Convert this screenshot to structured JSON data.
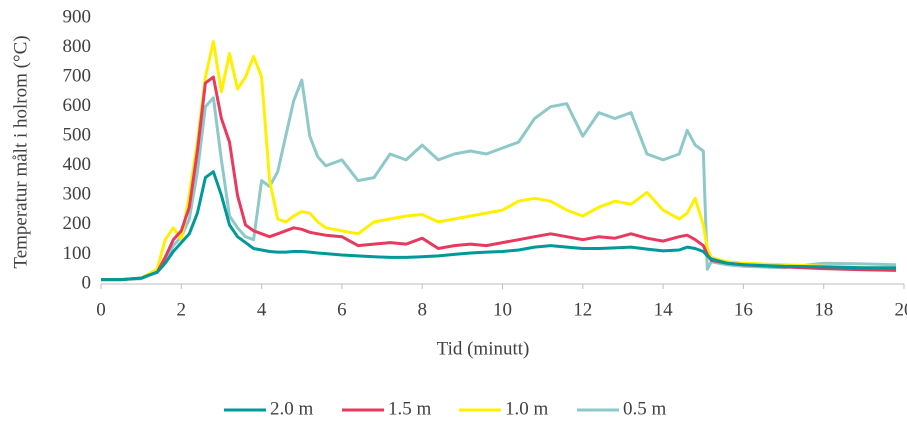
{
  "chart_data": {
    "type": "line",
    "x_label": "Tid (minutt)",
    "y_label": "Temperatur målt i holrom (°C)",
    "x": [
      0,
      0.5,
      1,
      1.2,
      1.4,
      1.6,
      1.8,
      2,
      2.2,
      2.4,
      2.6,
      2.8,
      3,
      3.2,
      3.4,
      3.6,
      3.8,
      4,
      4.2,
      4.4,
      4.6,
      4.8,
      5,
      5.2,
      5.4,
      5.6,
      6,
      6.4,
      6.8,
      7.2,
      7.6,
      8,
      8.4,
      8.8,
      9.2,
      9.6,
      10,
      10.4,
      10.8,
      11.2,
      11.6,
      12,
      12.4,
      12.8,
      13.2,
      13.6,
      14,
      14.4,
      14.6,
      14.8,
      15,
      15.1,
      15.2,
      15.6,
      16,
      17,
      18,
      19,
      19.8
    ],
    "series": [
      {
        "name": "2.0 m",
        "color": "#00999a",
        "values": [
          15,
          15,
          20,
          30,
          40,
          70,
          110,
          140,
          170,
          240,
          360,
          380,
          300,
          200,
          160,
          140,
          120,
          115,
          110,
          108,
          108,
          110,
          110,
          108,
          105,
          103,
          98,
          95,
          92,
          90,
          90,
          92,
          95,
          100,
          105,
          108,
          110,
          115,
          125,
          130,
          125,
          120,
          120,
          122,
          125,
          118,
          112,
          115,
          125,
          120,
          110,
          95,
          85,
          70,
          65,
          60,
          58,
          55,
          55
        ]
      },
      {
        "name": "1.5 m",
        "color": "#e8395e",
        "values": [
          15,
          15,
          20,
          30,
          40,
          90,
          150,
          180,
          260,
          450,
          680,
          700,
          560,
          480,
          300,
          200,
          180,
          170,
          160,
          170,
          180,
          190,
          185,
          175,
          170,
          165,
          160,
          130,
          135,
          140,
          135,
          155,
          120,
          130,
          135,
          130,
          140,
          150,
          160,
          170,
          160,
          150,
          160,
          155,
          170,
          155,
          145,
          160,
          165,
          150,
          130,
          100,
          80,
          70,
          65,
          58,
          52,
          48,
          46
        ]
      },
      {
        "name": "1.0 m",
        "color": "#fff000",
        "values": [
          15,
          15,
          20,
          35,
          50,
          150,
          190,
          150,
          300,
          480,
          700,
          820,
          650,
          780,
          660,
          700,
          770,
          700,
          350,
          220,
          210,
          230,
          245,
          240,
          210,
          190,
          180,
          170,
          210,
          220,
          230,
          235,
          210,
          220,
          230,
          240,
          250,
          280,
          290,
          280,
          250,
          230,
          260,
          280,
          270,
          310,
          250,
          220,
          240,
          290,
          200,
          120,
          90,
          75,
          70,
          65,
          60,
          55,
          50
        ]
      },
      {
        "name": "0.5 m",
        "color": "#8ec8c8",
        "values": [
          15,
          15,
          18,
          30,
          40,
          80,
          130,
          160,
          220,
          380,
          600,
          630,
          420,
          230,
          190,
          160,
          150,
          350,
          330,
          380,
          500,
          620,
          690,
          500,
          430,
          400,
          420,
          350,
          360,
          440,
          420,
          470,
          420,
          440,
          450,
          440,
          460,
          480,
          560,
          600,
          610,
          500,
          580,
          560,
          580,
          440,
          420,
          440,
          520,
          470,
          450,
          50,
          75,
          65,
          60,
          55,
          70,
          68,
          65
        ]
      }
    ],
    "xlim": [
      0,
      20
    ],
    "xticks": [
      0,
      2,
      4,
      6,
      8,
      10,
      12,
      14,
      16,
      18,
      20
    ],
    "ylim": [
      0,
      900
    ],
    "yticks": [
      0,
      100,
      200,
      300,
      400,
      500,
      600,
      700,
      800,
      900
    ],
    "grid": false,
    "legend": "bottom"
  }
}
